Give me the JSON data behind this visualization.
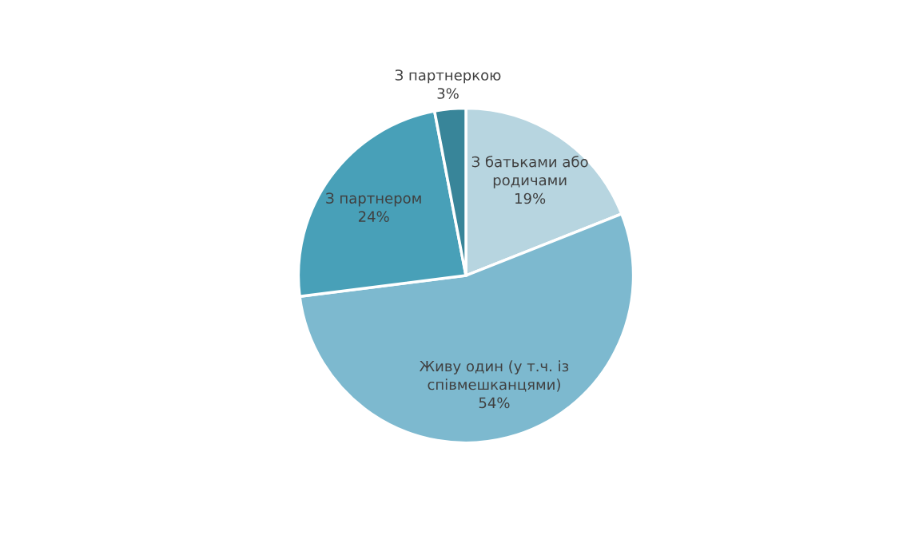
{
  "chart_data": {
    "type": "pie",
    "categories": [
      "З батьками або\nродичами",
      "Живу один (у т.ч. із\nспівмешканцями)",
      "З партнером",
      "З партнеркою"
    ],
    "values": [
      19,
      54,
      24,
      3
    ],
    "value_labels": [
      "19%",
      "54%",
      "24%",
      "3%"
    ],
    "colors": [
      "#b7d5e0",
      "#7db9cf",
      "#48a0b8",
      "#388599"
    ],
    "legend": false
  }
}
